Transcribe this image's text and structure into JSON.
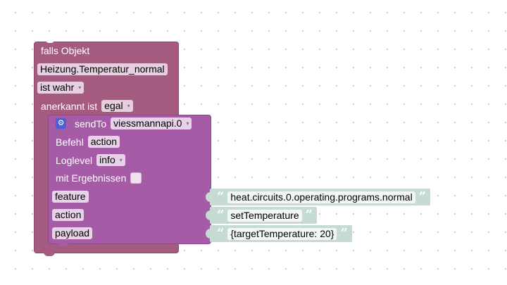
{
  "outer_block": {
    "header": "falls Objekt",
    "object_id": "Heizung.Temperatur_normal",
    "condition": "ist wahr",
    "ack_label": "anerkannt ist",
    "ack_value": "egal"
  },
  "sendto_block": {
    "label": "sendTo",
    "instance": "viessmannapi.0",
    "command_label": "Befehl",
    "command_value": "action",
    "loglevel_label": "Loglevel",
    "loglevel_value": "info",
    "results_label": "mit Ergebnissen",
    "params": [
      {
        "name": "feature",
        "value": "heat.circuits.0.operating.programs.normal"
      },
      {
        "name": "action",
        "value": "setTemperature"
      },
      {
        "name": "payload",
        "value": "{targetTemperature: 20}"
      }
    ]
  },
  "quote_open": "“",
  "quote_close": "”",
  "dropdown_arrow": "▾",
  "icons": {
    "settings": "gear-icon"
  },
  "colors": {
    "event_block": "#a55b80",
    "sendto_block": "#a55ba5",
    "text_block": "#c6dbd4",
    "settings_icon_bg": "#4c5fd6"
  }
}
